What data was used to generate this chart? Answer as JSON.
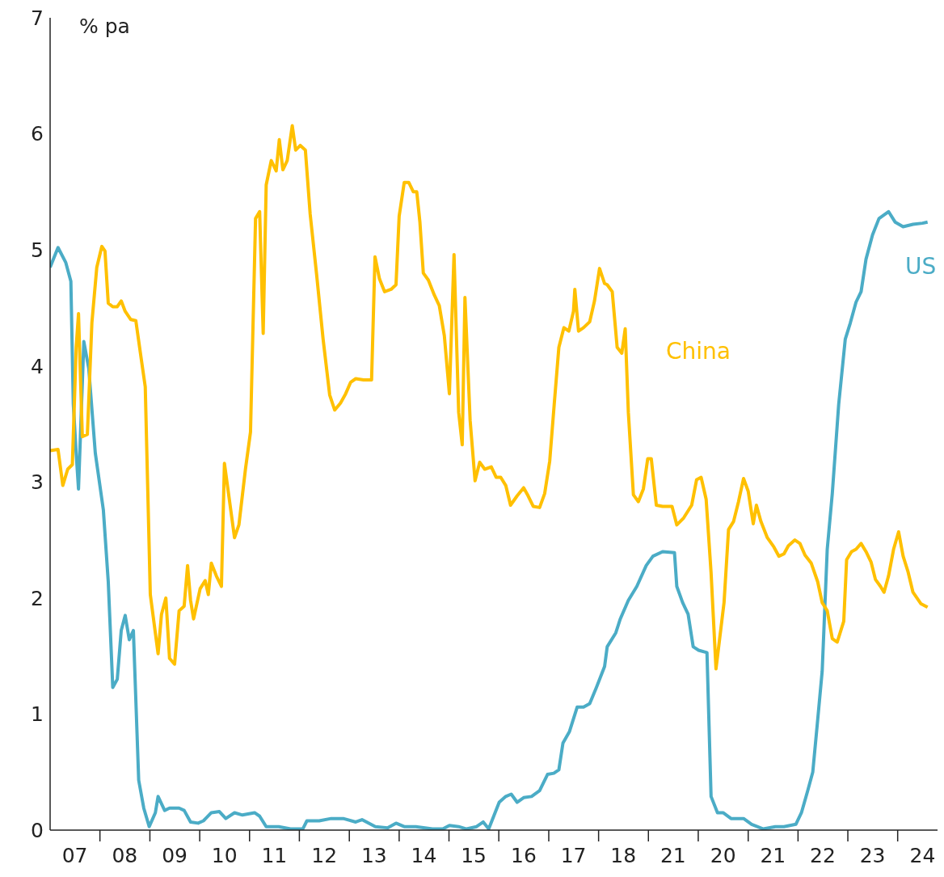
{
  "chart_data": {
    "type": "line",
    "ylabel": "% pa",
    "xlim": [
      "2007-01-01",
      "2024-10-19"
    ],
    "ylim": [
      0,
      7
    ],
    "yticks": [
      0,
      1,
      2,
      3,
      4,
      5,
      6,
      7
    ],
    "xticks": [
      {
        "value": "2007-07-01",
        "label": "07"
      },
      {
        "value": "2008-01-01",
        "label": null
      },
      {
        "value": "2008-07-01",
        "label": "08"
      },
      {
        "value": "2009-01-01",
        "label": null
      },
      {
        "value": "2009-07-01",
        "label": "09"
      },
      {
        "value": "2010-01-01",
        "label": null
      },
      {
        "value": "2010-07-01",
        "label": "10"
      },
      {
        "value": "2011-01-01",
        "label": null
      },
      {
        "value": "2011-07-01",
        "label": "11"
      },
      {
        "value": "2012-01-01",
        "label": null
      },
      {
        "value": "2012-07-01",
        "label": "12"
      },
      {
        "value": "2013-01-01",
        "label": null
      },
      {
        "value": "2013-07-01",
        "label": "13"
      },
      {
        "value": "2014-01-01",
        "label": null
      },
      {
        "value": "2014-07-01",
        "label": "14"
      },
      {
        "value": "2015-01-01",
        "label": null
      },
      {
        "value": "2015-07-01",
        "label": "15"
      },
      {
        "value": "2016-01-01",
        "label": null
      },
      {
        "value": "2016-07-01",
        "label": "16"
      },
      {
        "value": "2017-01-01",
        "label": null
      },
      {
        "value": "2017-07-01",
        "label": "17"
      },
      {
        "value": "2018-01-01",
        "label": null
      },
      {
        "value": "2018-07-01",
        "label": "18"
      },
      {
        "value": "2019-01-01",
        "label": null
      },
      {
        "value": "2019-07-01",
        "label": "21"
      },
      {
        "value": "2020-01-01",
        "label": null
      },
      {
        "value": "2020-07-01",
        "label": "20"
      },
      {
        "value": "2021-01-01",
        "label": null
      },
      {
        "value": "2021-07-01",
        "label": "21"
      },
      {
        "value": "2022-01-01",
        "label": null
      },
      {
        "value": "2022-07-01",
        "label": "22"
      },
      {
        "value": "2023-01-01",
        "label": null
      },
      {
        "value": "2023-07-01",
        "label": "23"
      },
      {
        "value": "2024-01-01",
        "label": null
      },
      {
        "value": "2024-07-01",
        "label": "24"
      }
    ],
    "grid": false,
    "legend": false,
    "marker": "none",
    "line_style": "solid",
    "series": [
      {
        "name": "US",
        "color": "#4bacc6",
        "x": [
          "2007-01-01",
          "2007-02-28",
          "2007-04-26",
          "2007-06-02",
          "2007-06-20",
          "2007-07-11",
          "2007-07-28",
          "2007-09-05",
          "2007-10-11",
          "2007-11-28",
          "2008-01-26",
          "2008-03-02",
          "2008-04-04",
          "2008-05-07",
          "2008-06-05",
          "2008-07-04",
          "2008-08-03",
          "2008-09-02",
          "2008-10-11",
          "2008-11-17",
          "2008-12-27",
          "2009-02-10",
          "2009-03-02",
          "2009-04-19",
          "2009-05-25",
          "2009-08-03",
          "2009-09-09",
          "2009-10-26",
          "2009-12-20",
          "2010-01-28",
          "2010-03-27",
          "2010-05-25",
          "2010-07-11",
          "2010-09-13",
          "2010-11-10",
          "2011-02-07",
          "2011-03-16",
          "2011-05-03",
          "2011-08-03",
          "2011-10-28",
          "2012-01-26",
          "2012-02-25",
          "2012-05-25",
          "2012-08-21",
          "2012-11-17",
          "2013-02-17",
          "2013-04-04",
          "2013-07-11",
          "2013-10-08",
          "2013-12-09",
          "2014-02-07",
          "2014-05-03",
          "2014-09-02",
          "2014-11-17",
          "2015-01-04",
          "2015-03-13",
          "2015-05-10",
          "2015-07-22",
          "2015-09-09",
          "2015-10-19",
          "2016-01-04",
          "2016-02-21",
          "2016-04-01",
          "2016-05-14",
          "2016-07-01",
          "2016-08-28",
          "2016-10-26",
          "2016-12-23",
          "2017-02-07",
          "2017-03-16",
          "2017-04-15",
          "2017-06-02",
          "2017-07-28",
          "2017-09-13",
          "2017-10-28",
          "2017-12-16",
          "2018-02-14",
          "2018-03-05",
          "2018-05-07",
          "2018-06-09",
          "2018-08-07",
          "2018-10-08",
          "2018-12-16",
          "2019-02-03",
          "2019-04-15",
          "2019-07-11",
          "2019-07-28",
          "2019-09-09",
          "2019-10-19",
          "2019-11-25",
          "2020-01-04",
          "2020-03-05",
          "2020-04-04",
          "2020-05-21",
          "2020-07-01",
          "2020-08-28",
          "2020-11-28",
          "2021-01-26",
          "2021-04-22",
          "2021-07-19",
          "2021-09-20",
          "2021-12-16",
          "2022-01-26",
          "2022-03-13",
          "2022-04-19",
          "2022-05-25",
          "2022-06-27",
          "2022-08-03",
          "2022-09-09",
          "2022-10-26",
          "2022-12-13",
          "2023-01-19",
          "2023-03-02",
          "2023-04-08",
          "2023-05-14",
          "2023-07-01",
          "2023-08-17",
          "2023-10-26",
          "2023-12-13",
          "2024-02-10",
          "2024-04-22",
          "2024-07-01",
          "2024-08-07"
        ],
        "values": [
          4.85,
          5.02,
          4.89,
          4.73,
          3.67,
          3.25,
          2.94,
          4.21,
          3.98,
          3.25,
          2.76,
          2.14,
          1.23,
          1.3,
          1.72,
          1.85,
          1.64,
          1.72,
          0.43,
          0.19,
          0.03,
          0.15,
          0.29,
          0.17,
          0.19,
          0.19,
          0.17,
          0.07,
          0.06,
          0.08,
          0.15,
          0.16,
          0.1,
          0.15,
          0.13,
          0.15,
          0.12,
          0.03,
          0.03,
          0.01,
          0.01,
          0.08,
          0.08,
          0.1,
          0.1,
          0.07,
          0.09,
          0.03,
          0.02,
          0.06,
          0.03,
          0.03,
          0.01,
          0.01,
          0.04,
          0.03,
          0.01,
          0.03,
          0.07,
          0.01,
          0.24,
          0.29,
          0.31,
          0.24,
          0.28,
          0.29,
          0.34,
          0.48,
          0.49,
          0.52,
          0.75,
          0.85,
          1.06,
          1.06,
          1.09,
          1.23,
          1.41,
          1.58,
          1.7,
          1.82,
          1.98,
          2.1,
          2.28,
          2.36,
          2.4,
          2.39,
          2.1,
          1.96,
          1.86,
          1.58,
          1.55,
          1.53,
          0.29,
          0.15,
          0.15,
          0.1,
          0.1,
          0.05,
          0.01,
          0.03,
          0.03,
          0.05,
          0.15,
          0.34,
          0.5,
          0.95,
          1.37,
          2.42,
          2.9,
          3.67,
          4.23,
          4.37,
          4.55,
          4.64,
          4.92,
          5.13,
          5.27,
          5.33,
          5.24,
          5.2,
          5.22,
          5.23,
          5.24
        ]
      },
      {
        "name": "China",
        "color": "#ffc000",
        "x": [
          "2007-01-01",
          "2007-02-28",
          "2007-04-04",
          "2007-05-10",
          "2007-06-13",
          "2007-07-11",
          "2007-07-28",
          "2007-08-25",
          "2007-10-01",
          "2007-11-03",
          "2007-12-09",
          "2008-01-15",
          "2008-02-07",
          "2008-03-02",
          "2008-04-04",
          "2008-05-07",
          "2008-06-05",
          "2008-07-04",
          "2008-08-14",
          "2008-09-20",
          "2008-10-26",
          "2008-11-28",
          "2009-01-04",
          "2009-03-02",
          "2009-03-27",
          "2009-04-28",
          "2009-05-25",
          "2009-07-01",
          "2009-08-03",
          "2009-09-09",
          "2009-10-04",
          "2009-10-26",
          "2009-11-17",
          "2010-01-04",
          "2010-02-10",
          "2010-03-05",
          "2010-03-27",
          "2010-05-03",
          "2010-06-09",
          "2010-07-01",
          "2010-09-13",
          "2010-10-15",
          "2010-12-02",
          "2011-01-08",
          "2011-02-14",
          "2011-03-16",
          "2011-04-11",
          "2011-05-03",
          "2011-06-09",
          "2011-07-15",
          "2011-08-07",
          "2011-09-02",
          "2011-10-04",
          "2011-11-10",
          "2011-12-05",
          "2012-01-08",
          "2012-02-14",
          "2012-03-20",
          "2012-05-07",
          "2012-06-23",
          "2012-08-10",
          "2012-09-16",
          "2012-10-28",
          "2012-12-05",
          "2013-01-11",
          "2013-02-17",
          "2013-04-15",
          "2013-06-13",
          "2013-07-08",
          "2013-08-10",
          "2013-09-16",
          "2013-11-03",
          "2013-12-09",
          "2014-01-01",
          "2014-02-07",
          "2014-03-13",
          "2014-04-15",
          "2014-05-10",
          "2014-06-02",
          "2014-06-27",
          "2014-08-03",
          "2014-09-16",
          "2014-10-22",
          "2014-11-28",
          "2015-01-04",
          "2015-02-07",
          "2015-03-13",
          "2015-04-08",
          "2015-04-28",
          "2015-06-05",
          "2015-07-11",
          "2015-08-14",
          "2015-09-20",
          "2015-11-07",
          "2015-12-13",
          "2016-01-15",
          "2016-02-21",
          "2016-03-27",
          "2016-05-14",
          "2016-07-01",
          "2016-08-03",
          "2016-09-09",
          "2016-10-26",
          "2016-12-02",
          "2017-01-08",
          "2017-02-10",
          "2017-03-16",
          "2017-04-22",
          "2017-05-28",
          "2017-07-01",
          "2017-07-11",
          "2017-08-07",
          "2017-09-13",
          "2017-10-28",
          "2017-12-02",
          "2018-01-08",
          "2018-02-14",
          "2018-03-05",
          "2018-04-11",
          "2018-05-17",
          "2018-06-20",
          "2018-07-15",
          "2018-08-07",
          "2018-09-13",
          "2018-10-19",
          "2018-11-25",
          "2018-12-27",
          "2019-01-22",
          "2019-02-28",
          "2019-04-15",
          "2019-06-23",
          "2019-07-28",
          "2019-09-16",
          "2019-11-14",
          "2019-12-20",
          "2020-01-22",
          "2020-02-28",
          "2020-04-04",
          "2020-05-10",
          "2020-07-08",
          "2020-08-10",
          "2020-09-16",
          "2020-10-22",
          "2020-11-28",
          "2021-01-01",
          "2021-02-07",
          "2021-03-02",
          "2021-04-04",
          "2021-05-21",
          "2021-07-08",
          "2021-08-14",
          "2021-09-20",
          "2021-10-22",
          "2021-12-09",
          "2022-01-15",
          "2022-02-21",
          "2022-04-08",
          "2022-05-25",
          "2022-06-27",
          "2022-08-03",
          "2022-09-09",
          "2022-10-15",
          "2022-12-02",
          "2022-12-23",
          "2023-01-28",
          "2023-03-02",
          "2023-04-08",
          "2023-05-14",
          "2023-06-20",
          "2023-07-22",
          "2023-08-28",
          "2023-09-23",
          "2023-10-26",
          "2023-12-02",
          "2024-01-08",
          "2024-02-10",
          "2024-03-16",
          "2024-04-22",
          "2024-06-20",
          "2024-08-07"
        ],
        "values": [
          3.27,
          3.28,
          2.97,
          3.11,
          3.15,
          4.16,
          4.45,
          3.39,
          3.41,
          4.37,
          4.85,
          5.03,
          4.99,
          4.54,
          4.51,
          4.51,
          4.56,
          4.47,
          4.4,
          4.39,
          4.09,
          3.82,
          2.03,
          1.52,
          1.86,
          2.0,
          1.48,
          1.43,
          1.89,
          1.93,
          2.28,
          1.98,
          1.82,
          2.08,
          2.15,
          2.03,
          2.3,
          2.19,
          2.1,
          3.16,
          2.52,
          2.63,
          3.11,
          3.43,
          5.27,
          5.33,
          4.28,
          5.56,
          5.77,
          5.68,
          5.95,
          5.69,
          5.77,
          6.07,
          5.86,
          5.9,
          5.86,
          5.31,
          4.78,
          4.23,
          3.75,
          3.62,
          3.68,
          3.76,
          3.86,
          3.89,
          3.88,
          3.88,
          4.94,
          4.75,
          4.64,
          4.66,
          4.7,
          5.29,
          5.58,
          5.58,
          5.5,
          5.5,
          5.24,
          4.8,
          4.74,
          4.61,
          4.52,
          4.26,
          3.76,
          4.96,
          3.6,
          3.32,
          4.59,
          3.53,
          3.01,
          3.17,
          3.11,
          3.13,
          3.04,
          3.04,
          2.97,
          2.8,
          2.88,
          2.95,
          2.88,
          2.79,
          2.78,
          2.9,
          3.18,
          3.67,
          4.16,
          4.33,
          4.3,
          4.47,
          4.66,
          4.3,
          4.33,
          4.38,
          4.56,
          4.84,
          4.71,
          4.7,
          4.64,
          4.16,
          4.11,
          4.32,
          3.6,
          2.89,
          2.83,
          2.94,
          3.2,
          3.2,
          2.8,
          2.79,
          2.79,
          2.63,
          2.69,
          2.8,
          3.02,
          3.04,
          2.85,
          2.22,
          1.39,
          1.96,
          2.59,
          2.66,
          2.83,
          3.03,
          2.92,
          2.64,
          2.8,
          2.66,
          2.52,
          2.44,
          2.36,
          2.38,
          2.45,
          2.5,
          2.47,
          2.37,
          2.3,
          2.14,
          1.96,
          1.89,
          1.65,
          1.62,
          1.8,
          2.33,
          2.4,
          2.42,
          2.47,
          2.4,
          2.31,
          2.16,
          2.1,
          2.05,
          2.19,
          2.42,
          2.57,
          2.36,
          2.23,
          2.05,
          1.95,
          1.92
        ]
      }
    ]
  }
}
